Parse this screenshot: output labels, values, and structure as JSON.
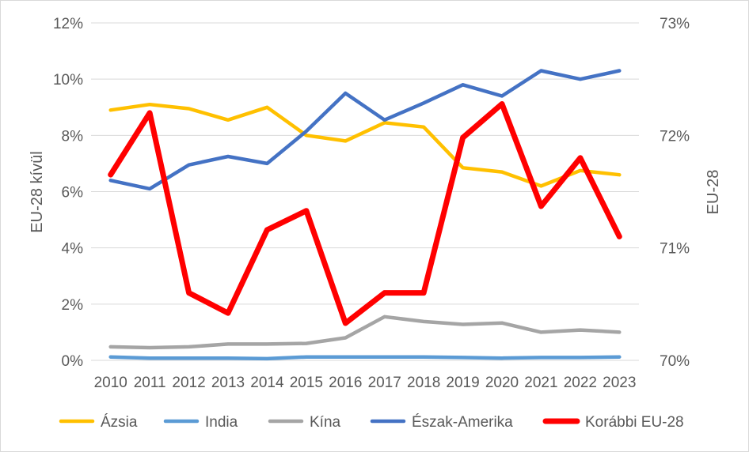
{
  "chart_data": {
    "type": "line",
    "x": [
      "2010",
      "2011",
      "2012",
      "2013",
      "2014",
      "2015",
      "2016",
      "2017",
      "2018",
      "2019",
      "2020",
      "2021",
      "2022",
      "2023"
    ],
    "ylabel_left": "EU-28 kívül",
    "ylabel_right": "EU-28",
    "ylim_left": [
      0,
      12
    ],
    "yticks_left": [
      0,
      2,
      4,
      6,
      8,
      10,
      12
    ],
    "ytick_labels_left": [
      "0%",
      "2%",
      "4%",
      "6%",
      "8%",
      "10%",
      "12%"
    ],
    "ylim_right": [
      70,
      73
    ],
    "yticks_right": [
      70,
      71,
      72,
      73
    ],
    "ytick_labels_right": [
      "70%",
      "71%",
      "72%",
      "73%"
    ],
    "grid": true,
    "legend_position": "bottom",
    "series": [
      {
        "name": "Ázsia",
        "axis": "left",
        "color": "#FFC000",
        "values": [
          8.9,
          9.1,
          8.95,
          8.55,
          9.0,
          8.0,
          7.8,
          8.45,
          8.3,
          6.85,
          6.7,
          6.2,
          6.75,
          6.6
        ]
      },
      {
        "name": "India",
        "axis": "left",
        "color": "#5B9BD5",
        "values": [
          0.12,
          0.08,
          0.08,
          0.08,
          0.06,
          0.12,
          0.12,
          0.12,
          0.12,
          0.1,
          0.08,
          0.1,
          0.1,
          0.12
        ]
      },
      {
        "name": "Kína",
        "axis": "left",
        "color": "#A5A5A5",
        "values": [
          0.48,
          0.45,
          0.48,
          0.58,
          0.58,
          0.6,
          0.8,
          1.55,
          1.38,
          1.28,
          1.33,
          1.0,
          1.08,
          1.0
        ]
      },
      {
        "name": "Észak-Amerika",
        "axis": "left",
        "color": "#4472C4",
        "values": [
          6.4,
          6.1,
          6.95,
          7.25,
          7.0,
          8.15,
          9.5,
          8.55,
          9.15,
          9.8,
          9.4,
          10.3,
          10.0,
          10.3
        ]
      },
      {
        "name": "Korábbi EU-28",
        "axis": "right",
        "color": "#FF0000",
        "values": [
          71.65,
          72.2,
          70.6,
          70.42,
          71.16,
          71.33,
          70.33,
          70.6,
          70.6,
          71.98,
          72.28,
          71.37,
          71.8,
          71.1
        ]
      }
    ]
  }
}
